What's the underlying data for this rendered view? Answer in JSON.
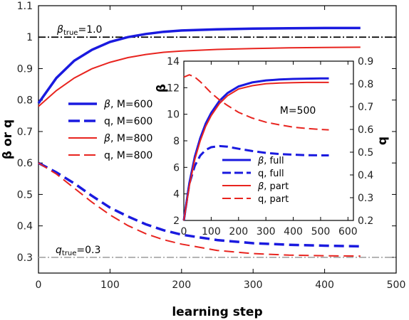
{
  "chart_data": [
    {
      "type": "line",
      "xlabel": "learning step",
      "ylabel": "β or q",
      "xlim": [
        0,
        500
      ],
      "ylim": [
        0.25,
        1.1
      ],
      "x_ticks": [
        0,
        100,
        200,
        300,
        400,
        500
      ],
      "y_ticks": [
        0.3,
        0.4,
        0.5,
        0.6,
        0.7,
        0.8,
        0.9,
        1.0,
        1.1
      ],
      "x_tick_labels": [
        "0",
        "100",
        "200",
        "300",
        "400",
        "500"
      ],
      "y_tick_labels": [
        "0.3",
        "0.4",
        "0.5",
        "0.6",
        "0.7",
        "0.8",
        "0.9",
        "1",
        "1.1"
      ],
      "legend_position": "left",
      "reference_lines": [
        {
          "value": 1.0,
          "label_sym": "β",
          "label_sub": "true",
          "label_rest": "=1.0",
          "color": "#000000"
        },
        {
          "value": 0.3,
          "label_sym": "q",
          "label_sub": "true",
          "label_rest": "=0.3",
          "color": "#aaaaaa"
        }
      ],
      "series": [
        {
          "sym": "β",
          "label": ", M=600",
          "color": "#1a1adf",
          "style": "solid",
          "width": 3.5,
          "x": [
            0,
            25,
            50,
            75,
            100,
            125,
            150,
            175,
            200,
            250,
            300,
            350,
            400,
            450
          ],
          "y": [
            0.79,
            0.87,
            0.925,
            0.96,
            0.985,
            1.0,
            1.01,
            1.017,
            1.021,
            1.025,
            1.027,
            1.028,
            1.029,
            1.029
          ]
        },
        {
          "sym": "",
          "label": "q, M=600",
          "color": "#1a1adf",
          "style": "dash",
          "width": 3.5,
          "x": [
            0,
            25,
            50,
            75,
            100,
            125,
            150,
            175,
            200,
            250,
            300,
            350,
            400,
            450
          ],
          "y": [
            0.6,
            0.57,
            0.535,
            0.495,
            0.458,
            0.43,
            0.405,
            0.386,
            0.372,
            0.355,
            0.345,
            0.34,
            0.337,
            0.335
          ]
        },
        {
          "sym": "β",
          "label": ", M=800",
          "color": "#e8241f",
          "style": "solid",
          "width": 2,
          "x": [
            0,
            25,
            50,
            75,
            100,
            125,
            150,
            175,
            200,
            250,
            300,
            350,
            400,
            450
          ],
          "y": [
            0.78,
            0.83,
            0.87,
            0.9,
            0.92,
            0.935,
            0.945,
            0.952,
            0.956,
            0.961,
            0.964,
            0.966,
            0.967,
            0.968
          ]
        },
        {
          "sym": "",
          "label": "q, M=800",
          "color": "#e8241f",
          "style": "dash",
          "width": 2,
          "x": [
            0,
            25,
            50,
            75,
            100,
            125,
            150,
            175,
            200,
            250,
            300,
            350,
            400,
            450
          ],
          "y": [
            0.6,
            0.565,
            0.52,
            0.475,
            0.435,
            0.401,
            0.375,
            0.356,
            0.342,
            0.322,
            0.312,
            0.307,
            0.305,
            0.304
          ]
        }
      ]
    },
    {
      "type": "line",
      "annotation": "M=500",
      "xlim": [
        0,
        620
      ],
      "ylim_left": [
        2,
        14
      ],
      "ylim_right": [
        0.2,
        0.9
      ],
      "ylabel_left": "β",
      "ylabel_right": "q",
      "x_ticks": [
        0,
        100,
        200,
        300,
        400,
        500,
        600
      ],
      "x_tick_labels": [
        "0",
        "100",
        "200",
        "300",
        "400",
        "500",
        "600"
      ],
      "y_ticks_left": [
        2,
        4,
        6,
        8,
        10,
        12,
        14
      ],
      "y_tick_labels_left": [
        "2",
        "4",
        "6",
        "8",
        "10",
        "12",
        "14"
      ],
      "y_ticks_right": [
        0.2,
        0.3,
        0.4,
        0.5,
        0.6,
        0.7,
        0.8,
        0.9
      ],
      "y_tick_labels_right": [
        "0.2",
        "0.3",
        "0.4",
        "0.5",
        "0.6",
        "0.7",
        "0.8",
        "0.9"
      ],
      "legend_position": "bottom-center",
      "series": [
        {
          "sym": "β",
          "label": ", full",
          "axis": "left",
          "color": "#1a1adf",
          "style": "solid",
          "width": 3,
          "x": [
            0,
            20,
            40,
            60,
            80,
            100,
            130,
            160,
            200,
            250,
            300,
            350,
            400,
            450,
            500,
            530
          ],
          "y": [
            2,
            4.8,
            6.8,
            8.2,
            9.3,
            10.1,
            11.0,
            11.6,
            12.1,
            12.4,
            12.55,
            12.62,
            12.66,
            12.68,
            12.7,
            12.7
          ]
        },
        {
          "sym": "",
          "label": "q, full",
          "axis": "right",
          "color": "#1a1adf",
          "style": "dash",
          "width": 3,
          "x": [
            0,
            20,
            40,
            60,
            80,
            100,
            130,
            160,
            200,
            250,
            300,
            350,
            400,
            450,
            500,
            530
          ],
          "y": [
            0.2,
            0.36,
            0.44,
            0.485,
            0.51,
            0.522,
            0.527,
            0.524,
            0.515,
            0.505,
            0.497,
            0.492,
            0.489,
            0.487,
            0.486,
            0.486
          ]
        },
        {
          "sym": "β",
          "label": ", part",
          "axis": "left",
          "color": "#e8241f",
          "style": "solid",
          "width": 2,
          "x": [
            0,
            20,
            40,
            60,
            80,
            100,
            130,
            160,
            200,
            250,
            300,
            350,
            400,
            450,
            500,
            530
          ],
          "y": [
            2,
            4.6,
            6.6,
            8.0,
            9.1,
            9.9,
            10.8,
            11.4,
            11.9,
            12.15,
            12.3,
            12.35,
            12.38,
            12.4,
            12.4,
            12.4
          ]
        },
        {
          "sym": "",
          "label": "q, part",
          "axis": "right",
          "color": "#e8241f",
          "style": "dash",
          "width": 2,
          "x": [
            0,
            20,
            40,
            60,
            80,
            100,
            130,
            160,
            200,
            250,
            300,
            350,
            400,
            450,
            500,
            530
          ],
          "y": [
            0.83,
            0.84,
            0.83,
            0.81,
            0.785,
            0.76,
            0.73,
            0.705,
            0.675,
            0.65,
            0.632,
            0.62,
            0.61,
            0.604,
            0.6,
            0.598
          ]
        }
      ]
    }
  ]
}
